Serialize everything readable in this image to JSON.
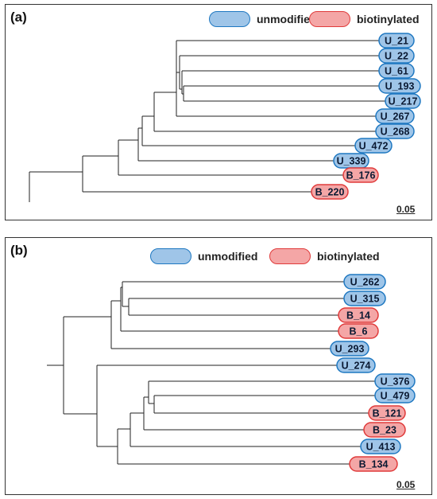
{
  "colors": {
    "unmodified_fill": "#9fc5e8",
    "unmodified_border": "#1f78c1",
    "biotinylated_fill": "#f4a6a6",
    "biotinylated_border": "#e03b3b",
    "branch": "#222222"
  },
  "legend": {
    "unmodified": "unmodified",
    "biotinylated": "biotinylated"
  },
  "panels": [
    {
      "label": "(a)",
      "scale": "0.05",
      "tips": [
        {
          "name": "U_21",
          "type": "unmodified"
        },
        {
          "name": "U_22",
          "type": "unmodified"
        },
        {
          "name": "U_61",
          "type": "unmodified"
        },
        {
          "name": "U_193",
          "type": "unmodified"
        },
        {
          "name": "U_217",
          "type": "unmodified"
        },
        {
          "name": "U_267",
          "type": "unmodified"
        },
        {
          "name": "U_268",
          "type": "unmodified"
        },
        {
          "name": "U_472",
          "type": "unmodified"
        },
        {
          "name": "U_339",
          "type": "unmodified"
        },
        {
          "name": "B_176",
          "type": "biotinylated"
        },
        {
          "name": "B_220",
          "type": "biotinylated"
        }
      ]
    },
    {
      "label": "(b)",
      "scale": "0.05",
      "tips": [
        {
          "name": "U_262",
          "type": "unmodified"
        },
        {
          "name": "U_315",
          "type": "unmodified"
        },
        {
          "name": "B_14",
          "type": "biotinylated"
        },
        {
          "name": "B_6",
          "type": "biotinylated"
        },
        {
          "name": "U_293",
          "type": "unmodified"
        },
        {
          "name": "U_274",
          "type": "unmodified"
        },
        {
          "name": "U_376",
          "type": "unmodified"
        },
        {
          "name": "U_479",
          "type": "unmodified"
        },
        {
          "name": "B_121",
          "type": "biotinylated"
        },
        {
          "name": "B_23",
          "type": "biotinylated"
        },
        {
          "name": "U_413",
          "type": "unmodified"
        },
        {
          "name": "B_134",
          "type": "biotinylated"
        }
      ]
    }
  ]
}
